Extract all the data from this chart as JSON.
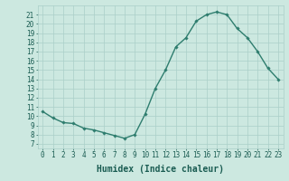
{
  "x": [
    0,
    1,
    2,
    3,
    4,
    5,
    6,
    7,
    8,
    9,
    10,
    11,
    12,
    13,
    14,
    15,
    16,
    17,
    18,
    19,
    20,
    21,
    22,
    23
  ],
  "y": [
    10.5,
    9.8,
    9.3,
    9.2,
    8.7,
    8.5,
    8.2,
    7.9,
    7.6,
    8.0,
    10.2,
    13.0,
    15.0,
    17.5,
    18.5,
    20.3,
    21.0,
    21.3,
    21.0,
    19.5,
    18.5,
    17.0,
    15.2,
    14.0
  ],
  "line_color": "#2e7d6e",
  "marker": "D",
  "marker_size": 1.8,
  "bg_color": "#cce8e0",
  "grid_color": "#aacfc8",
  "xlabel": "Humidex (Indice chaleur)",
  "ylim": [
    6.5,
    22
  ],
  "xlim": [
    -0.5,
    23.5
  ],
  "yticks": [
    7,
    8,
    9,
    10,
    11,
    12,
    13,
    14,
    15,
    16,
    17,
    18,
    19,
    20,
    21
  ],
  "xticks": [
    0,
    1,
    2,
    3,
    4,
    5,
    6,
    7,
    8,
    9,
    10,
    11,
    12,
    13,
    14,
    15,
    16,
    17,
    18,
    19,
    20,
    21,
    22,
    23
  ],
  "xtick_labels": [
    "0",
    "1",
    "2",
    "3",
    "4",
    "5",
    "6",
    "7",
    "8",
    "9",
    "10",
    "11",
    "12",
    "13",
    "14",
    "15",
    "16",
    "17",
    "18",
    "19",
    "20",
    "21",
    "22",
    "23"
  ],
  "font_color": "#1a5c52",
  "tick_fontsize": 5.5,
  "xlabel_fontsize": 7,
  "linewidth": 1.0
}
